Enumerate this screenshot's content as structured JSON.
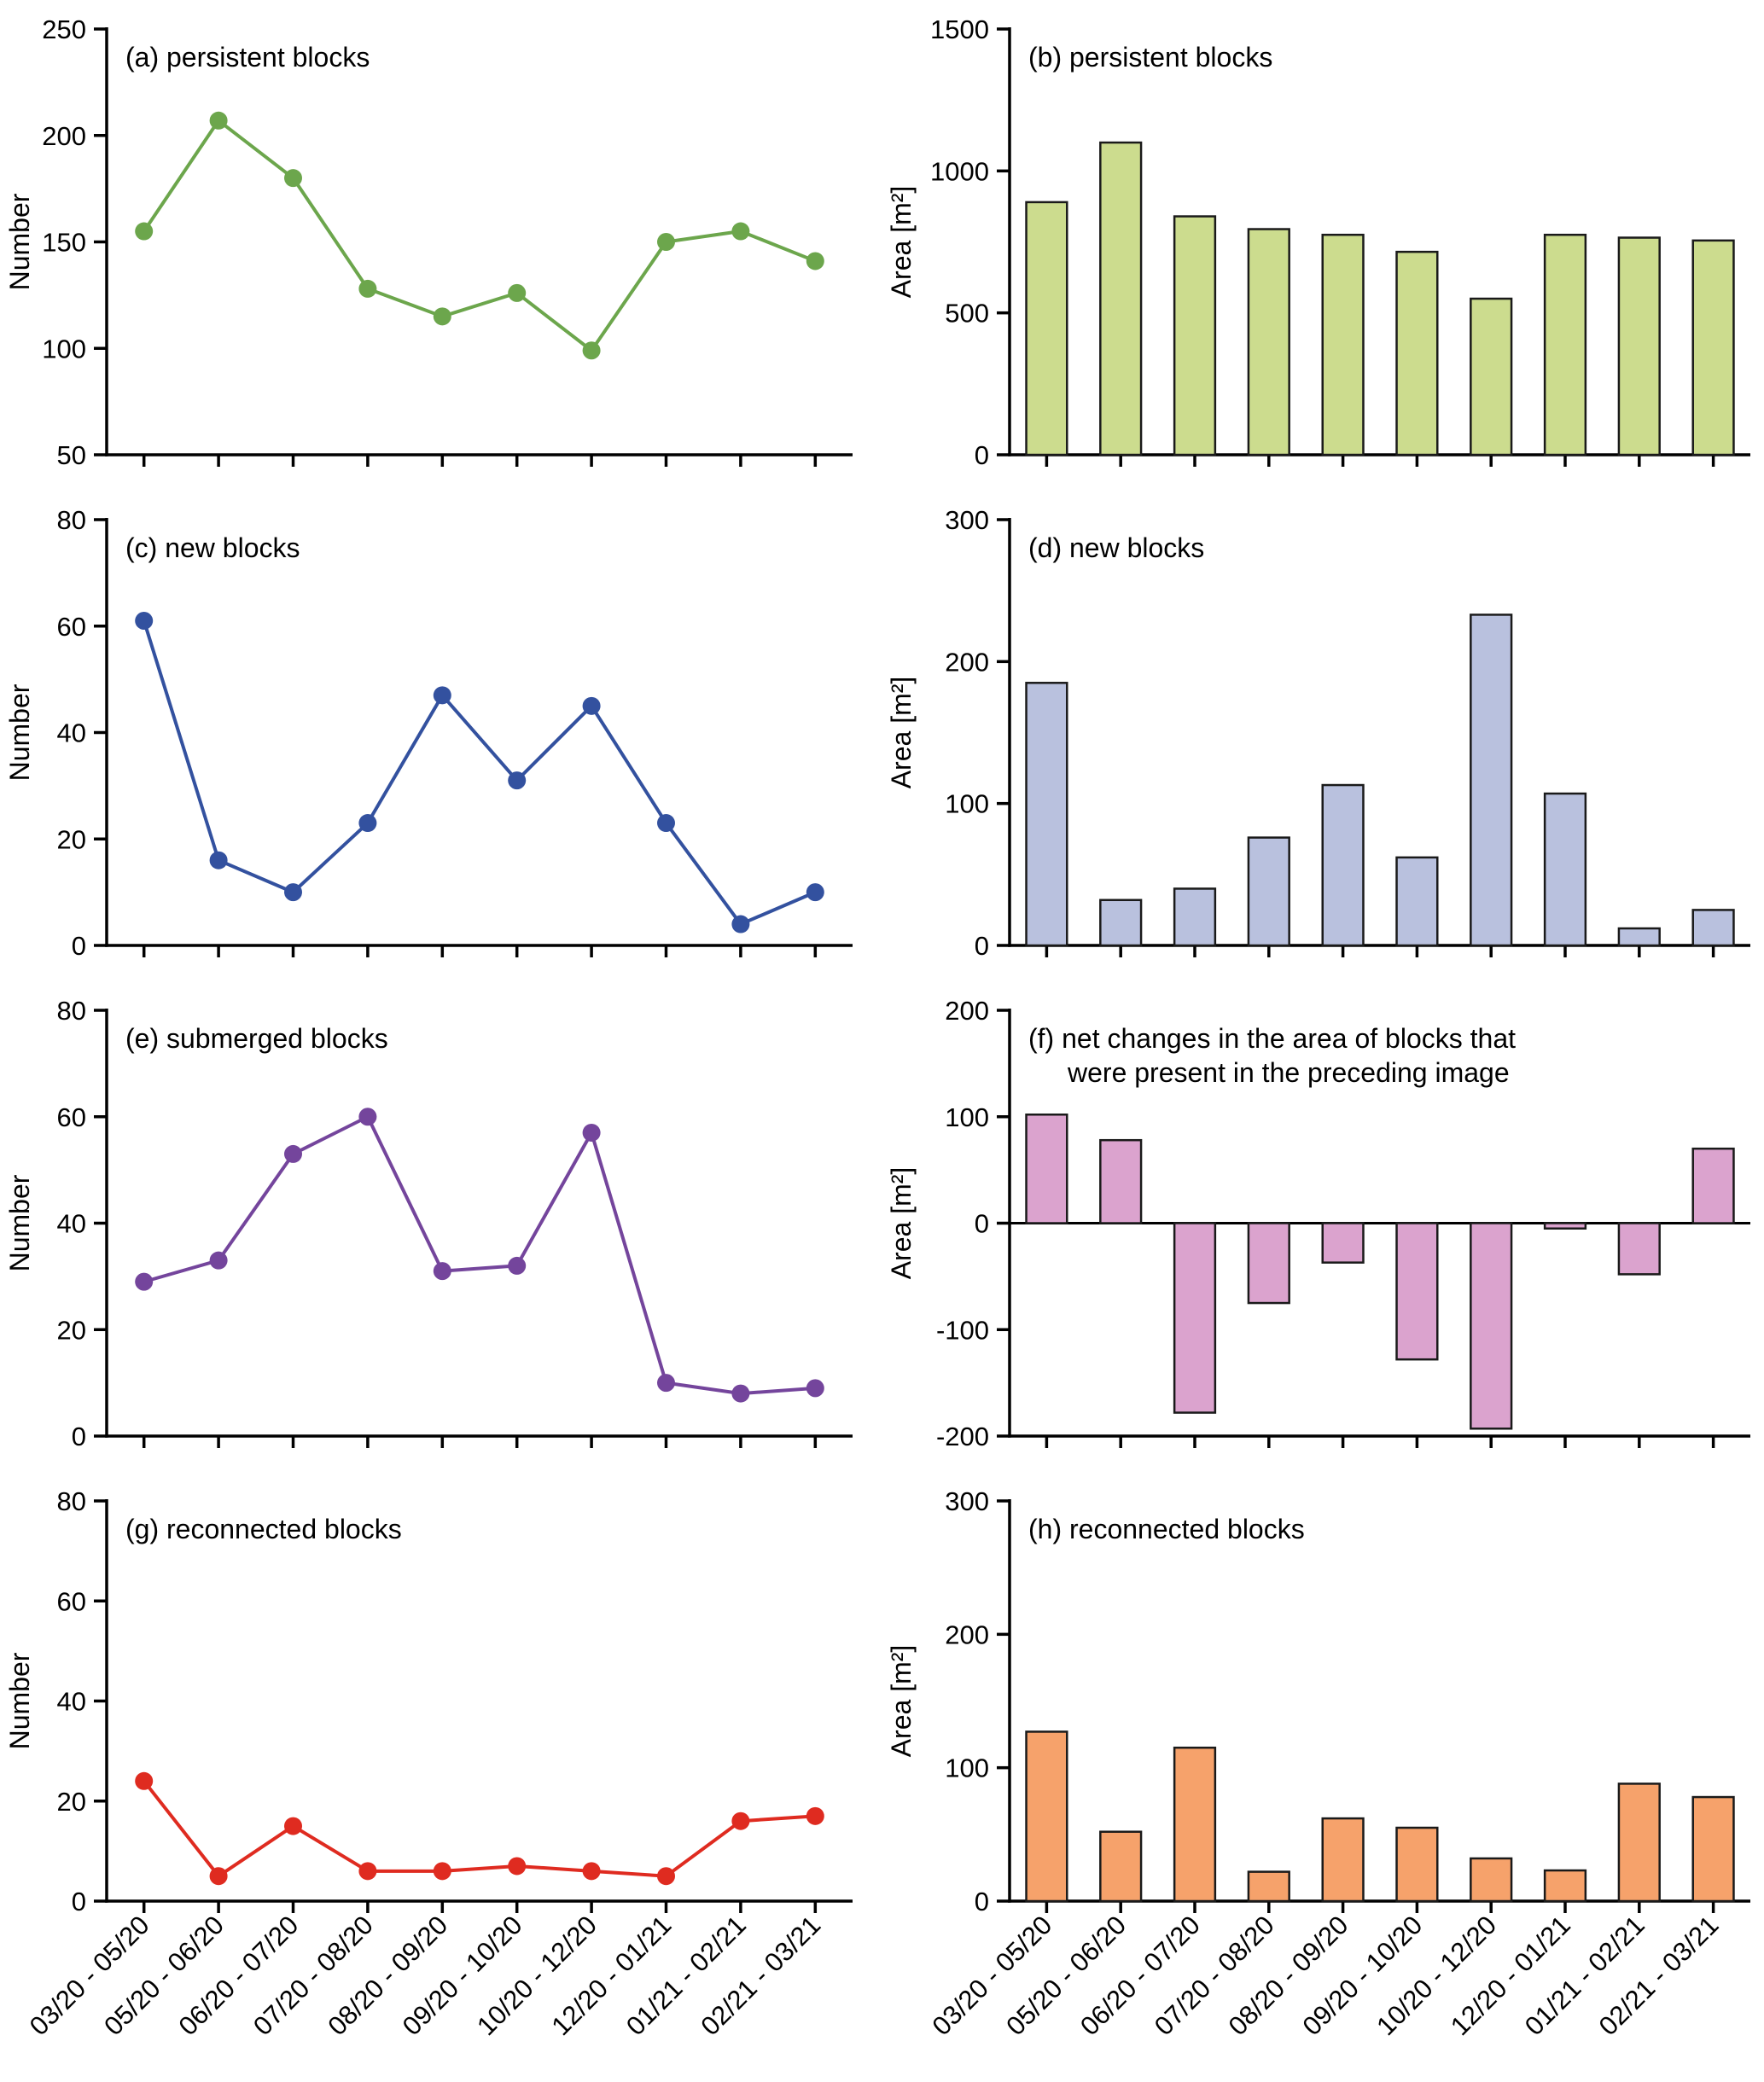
{
  "figure_name": "block dynamics multi-panel figure",
  "categories": [
    "03/20 - 05/20",
    "05/20 - 06/20",
    "06/20 - 07/20",
    "07/20 - 08/20",
    "08/20 - 09/20",
    "09/20 - 10/20",
    "10/20 - 12/20",
    "12/20 - 01/21",
    "01/21 - 02/21",
    "02/21 - 03/21"
  ],
  "chart_data": [
    {
      "id": "a",
      "type": "line",
      "title": [
        "(a) persistent blocks"
      ],
      "ylabel": "Number",
      "ylim": [
        50,
        250
      ],
      "yticks": [
        50,
        100,
        150,
        200,
        250
      ],
      "values": [
        155,
        207,
        180,
        128,
        115,
        126,
        99,
        150,
        155,
        141
      ],
      "color": "#6CA64C"
    },
    {
      "id": "b",
      "type": "bar",
      "title": [
        "(b) persistent blocks"
      ],
      "ylabel": "Area [m²]",
      "ylim": [
        0,
        1500
      ],
      "yticks": [
        0,
        500,
        1000,
        1500
      ],
      "values": [
        890,
        1100,
        840,
        795,
        775,
        715,
        550,
        775,
        765,
        755
      ],
      "color": "#CCDC8E",
      "stroke": "#1a1a1a"
    },
    {
      "id": "c",
      "type": "line",
      "title": [
        "(c) new blocks"
      ],
      "ylabel": "Number",
      "ylim": [
        0,
        80
      ],
      "yticks": [
        0,
        20,
        40,
        60,
        80
      ],
      "values": [
        61,
        16,
        10,
        23,
        47,
        31,
        45,
        23,
        4,
        10
      ],
      "color": "#33519F"
    },
    {
      "id": "d",
      "type": "bar",
      "title": [
        "(d) new blocks"
      ],
      "ylabel": "Area [m²]",
      "ylim": [
        0,
        300
      ],
      "yticks": [
        0,
        100,
        200,
        300
      ],
      "values": [
        185,
        32,
        40,
        76,
        113,
        62,
        233,
        107,
        12,
        25
      ],
      "color": "#B9C1DE",
      "stroke": "#1a1a1a"
    },
    {
      "id": "e",
      "type": "line",
      "title": [
        "(e) submerged blocks"
      ],
      "ylabel": "Number",
      "ylim": [
        0,
        80
      ],
      "yticks": [
        0,
        20,
        40,
        60,
        80
      ],
      "values": [
        29,
        33,
        53,
        60,
        31,
        32,
        57,
        10,
        8,
        9
      ],
      "color": "#74459C"
    },
    {
      "id": "f",
      "type": "bar",
      "title": [
        "(f) net changes in the area of blocks that",
        "were present in the preceding image"
      ],
      "ylabel": "Area [m²]",
      "ylim": [
        -200,
        200
      ],
      "yticks": [
        -200,
        -100,
        0,
        100,
        200
      ],
      "values": [
        102,
        78,
        -178,
        -75,
        -37,
        -128,
        -193,
        -5,
        -48,
        70
      ],
      "color": "#DBA3CE",
      "stroke": "#1a1a1a"
    },
    {
      "id": "g",
      "type": "line",
      "title": [
        "(g) reconnected blocks"
      ],
      "ylabel": "Number",
      "ylim": [
        0,
        80
      ],
      "yticks": [
        0,
        20,
        40,
        60,
        80
      ],
      "values": [
        24,
        5,
        15,
        6,
        6,
        7,
        6,
        5,
        16,
        17
      ],
      "color": "#DF2B20"
    },
    {
      "id": "h",
      "type": "bar",
      "title": [
        "(h) reconnected blocks"
      ],
      "ylabel": "Area [m²]",
      "ylim": [
        0,
        300
      ],
      "yticks": [
        0,
        100,
        200,
        300
      ],
      "values": [
        127,
        52,
        115,
        22,
        62,
        55,
        32,
        23,
        88,
        78
      ],
      "color": "#F6A26B",
      "stroke": "#1a1a1a"
    }
  ],
  "axis_color": "#000000"
}
